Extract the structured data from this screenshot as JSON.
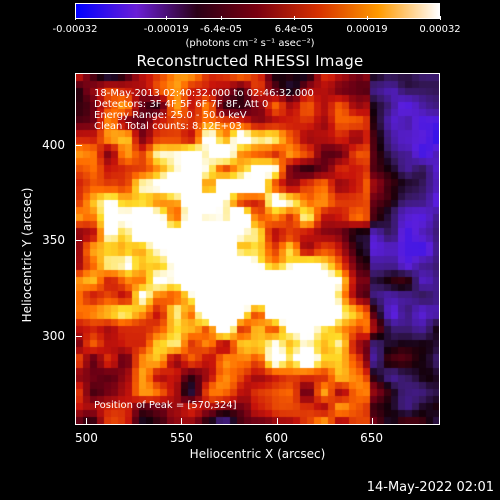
{
  "colorbar": {
    "ticks": [
      "-0.00032",
      "-0.00019",
      "-6.4e-05",
      "6.4e-05",
      "0.00019",
      "0.00032"
    ],
    "unit_label": "(photons cm⁻² s⁻¹ asec⁻²)",
    "stops": [
      "#0000ff",
      "#6a1fd6",
      "#2a0016",
      "#7a0010",
      "#d63000",
      "#ff9a00",
      "#ffffff"
    ]
  },
  "plot": {
    "title": "Reconstructed RHESSI Image",
    "annotations": [
      "18-May-2013 02:40:32.000 to 02:46:32.000",
      "Detectors: 3F 4F 5F 6F 7F 8F, Att 0",
      "Energy Range: 25.0 - 50.0 keV",
      "Clean     Total counts: 8.12E+03"
    ],
    "peak_label": "Position of Peak = [570,324]"
  },
  "footer": {
    "date": "14-May-2022 02:01"
  },
  "chart_data": {
    "type": "heatmap",
    "title": "Reconstructed RHESSI Image",
    "xlabel": "Heliocentric X (arcsec)",
    "ylabel": "Heliocentric Y (arcsec)",
    "xlim": [
      494,
      686
    ],
    "ylim": [
      253,
      438
    ],
    "xticks": [
      500,
      550,
      600,
      650
    ],
    "yticks": [
      300,
      350,
      400
    ],
    "colorbar_range": [
      -0.00032,
      0.00032
    ],
    "time_range": "18-May-2013 02:40:32.000 to 02:46:32.000",
    "detectors": "3F 4F 5F 6F 7F 8F, Att 0",
    "energy_range_keV": [
      25.0,
      50.0
    ],
    "algorithm": "Clean",
    "total_counts": 8120,
    "peak_position": [
      570,
      324
    ],
    "peaks": [
      {
        "x": 570,
        "y": 324,
        "value": 0.00032
      },
      {
        "x": 612,
        "y": 322,
        "value": 0.0003
      },
      {
        "x": 558,
        "y": 347,
        "value": 0.00024
      },
      {
        "x": 530,
        "y": 385,
        "value": 0.00014
      },
      {
        "x": 585,
        "y": 368,
        "value": 0.00013
      },
      {
        "x": 625,
        "y": 292,
        "value": 0.00016
      },
      {
        "x": 505,
        "y": 330,
        "value": 0.00011
      }
    ]
  }
}
